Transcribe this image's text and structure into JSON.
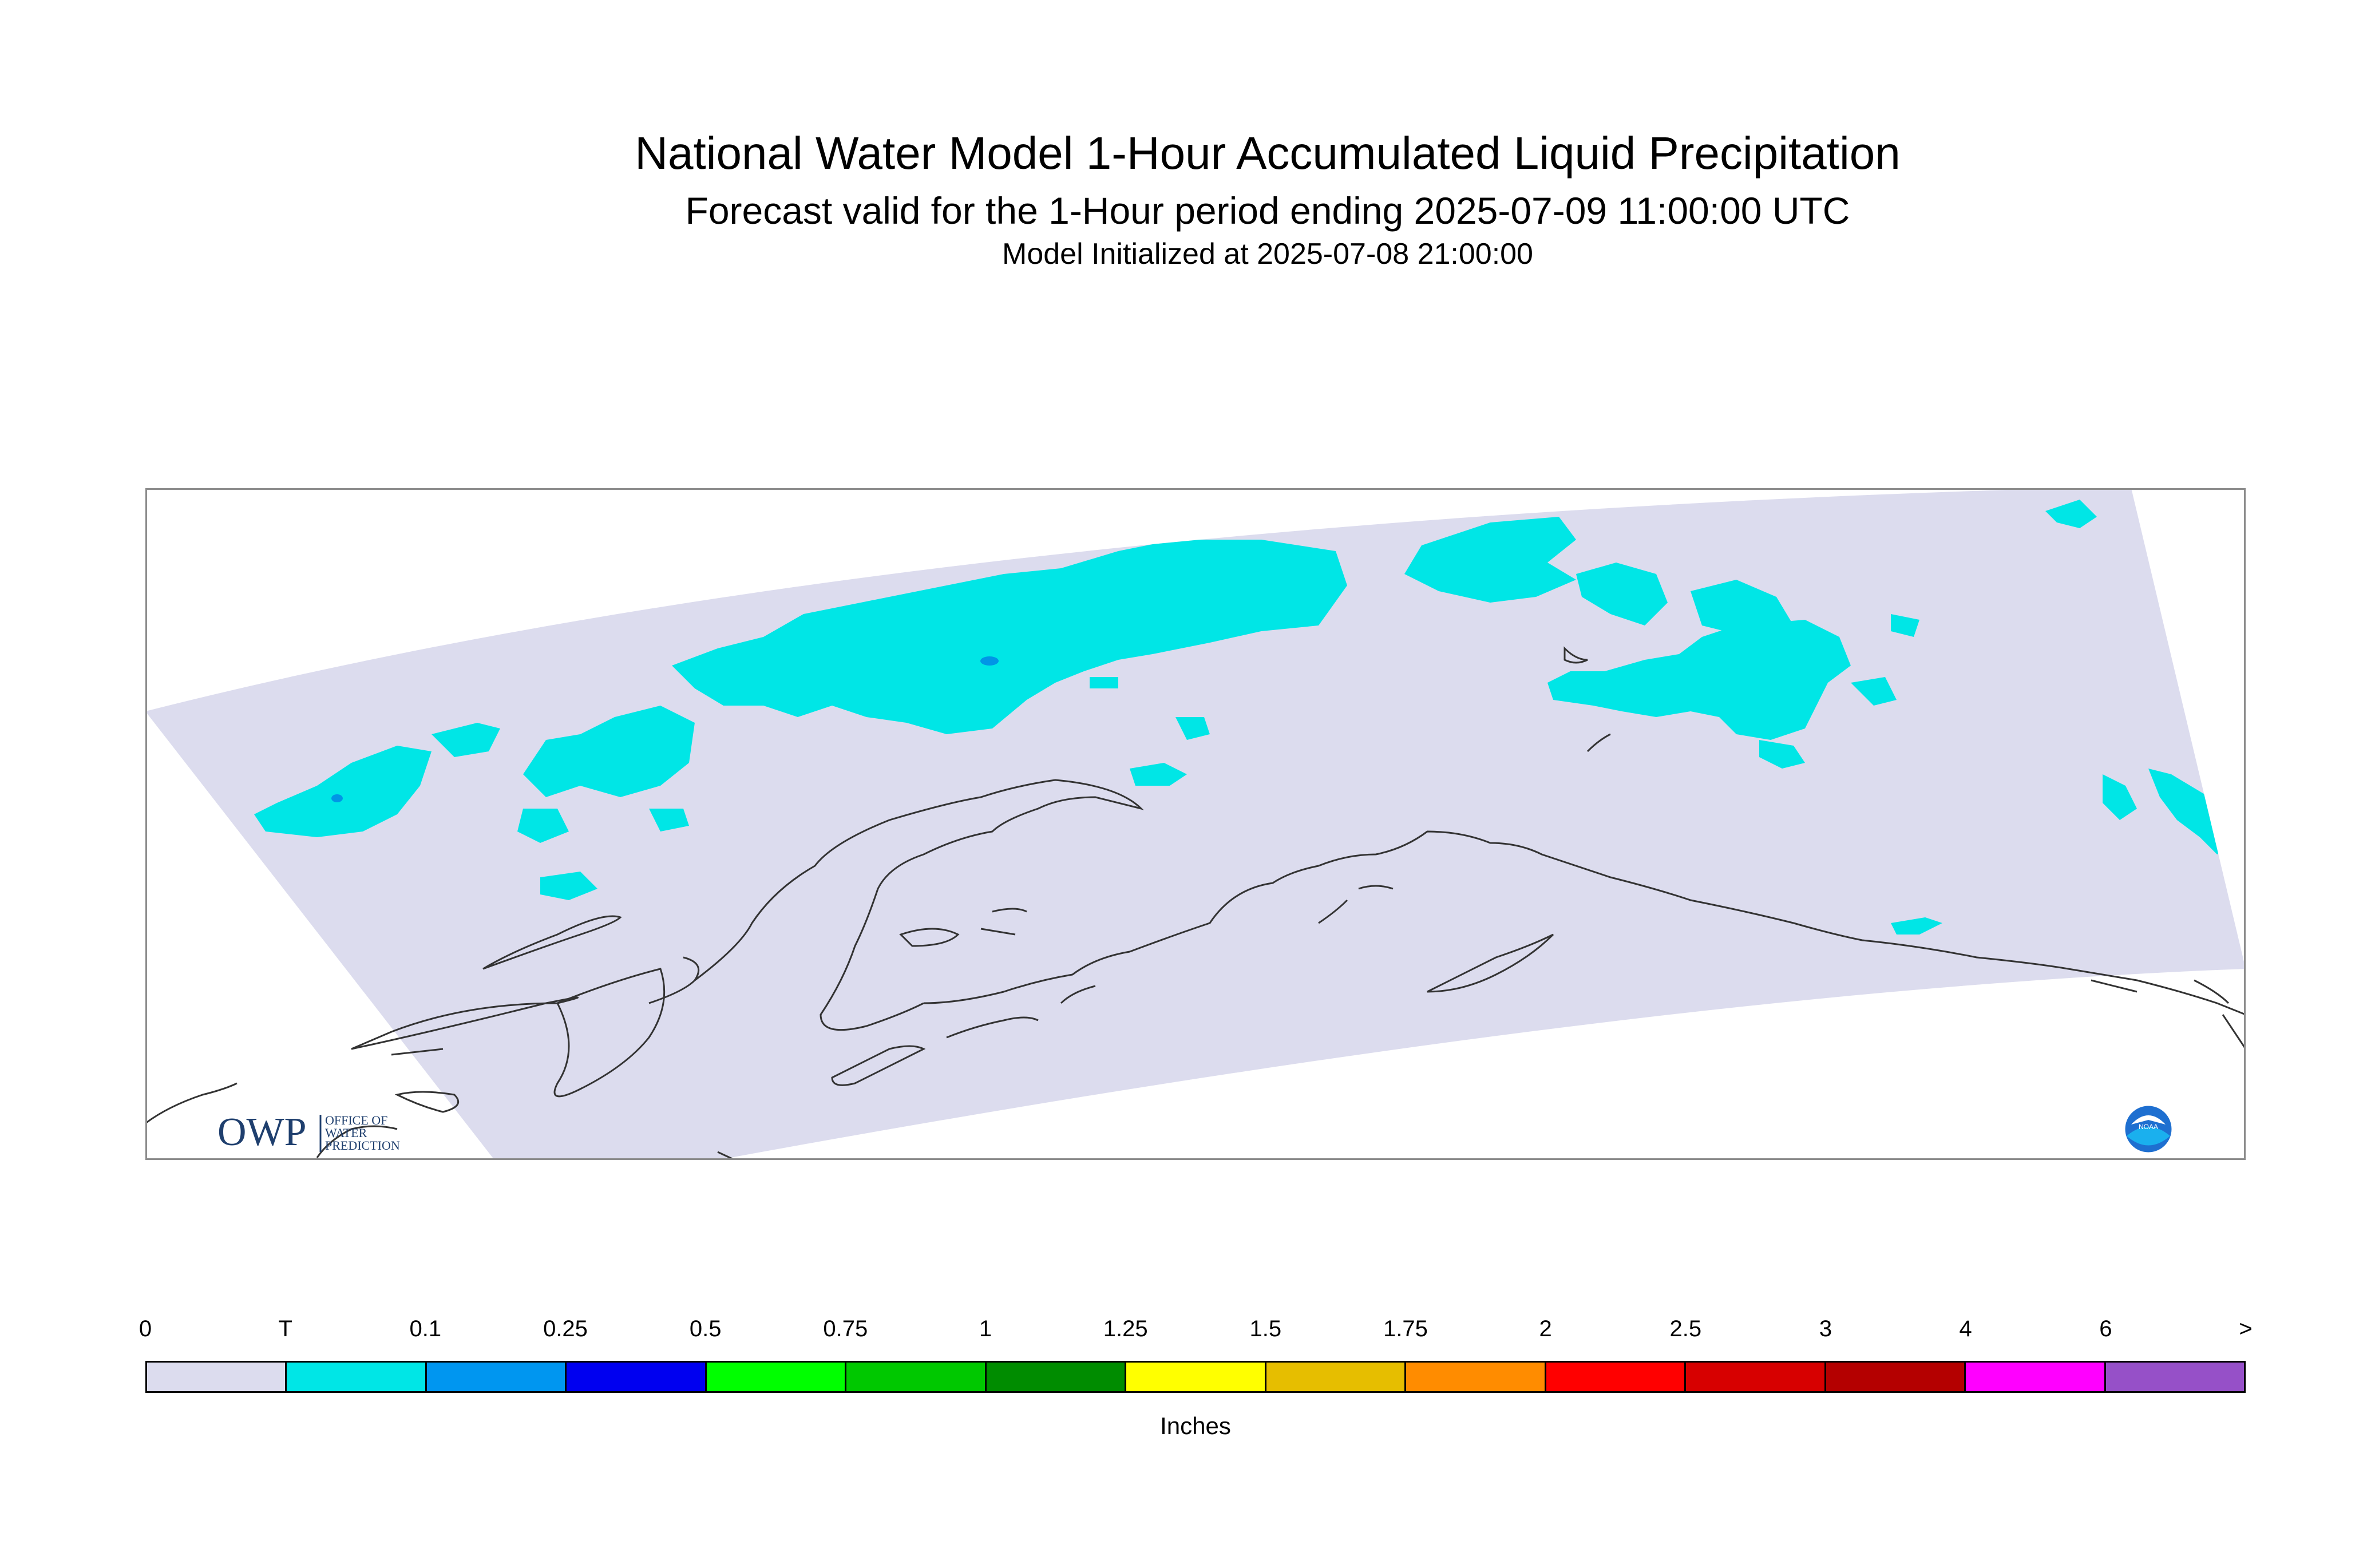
{
  "title": "National Water Model 1-Hour Accumulated Liquid Precipitation",
  "subtitle": "Forecast valid for the 1-Hour period ending 2025-07-09 11:00:00 UTC",
  "init_line": "Model Initialized at 2025-07-08 21:00:00",
  "logos": {
    "owp": {
      "mark": "OWP",
      "text_lines": [
        "OFFICE OF",
        "WATER",
        "PREDICTION"
      ]
    },
    "noaa": {
      "mark": "NOAA"
    }
  },
  "colors": {
    "domain_fill": "#dcdcee",
    "precip_trace": "#00e6e6",
    "precip_small": "#0096e6",
    "frame": "#8c8c8c",
    "coast": "#333333"
  },
  "legend": {
    "units": "Inches",
    "ticks": [
      "0",
      "T",
      "0.1",
      "0.25",
      "0.5",
      "0.75",
      "1",
      "1.25",
      "1.5",
      "1.75",
      "2",
      "2.5",
      "3",
      "4",
      "6",
      ">"
    ],
    "colors": [
      "#dcdcee",
      "#00e6e6",
      "#0096f0",
      "#0000f0",
      "#00ff00",
      "#00c800",
      "#008c00",
      "#ffff00",
      "#e6be00",
      "#ff8c00",
      "#ff0000",
      "#d70000",
      "#b40000",
      "#ff00ff",
      "#9650c8"
    ]
  }
}
